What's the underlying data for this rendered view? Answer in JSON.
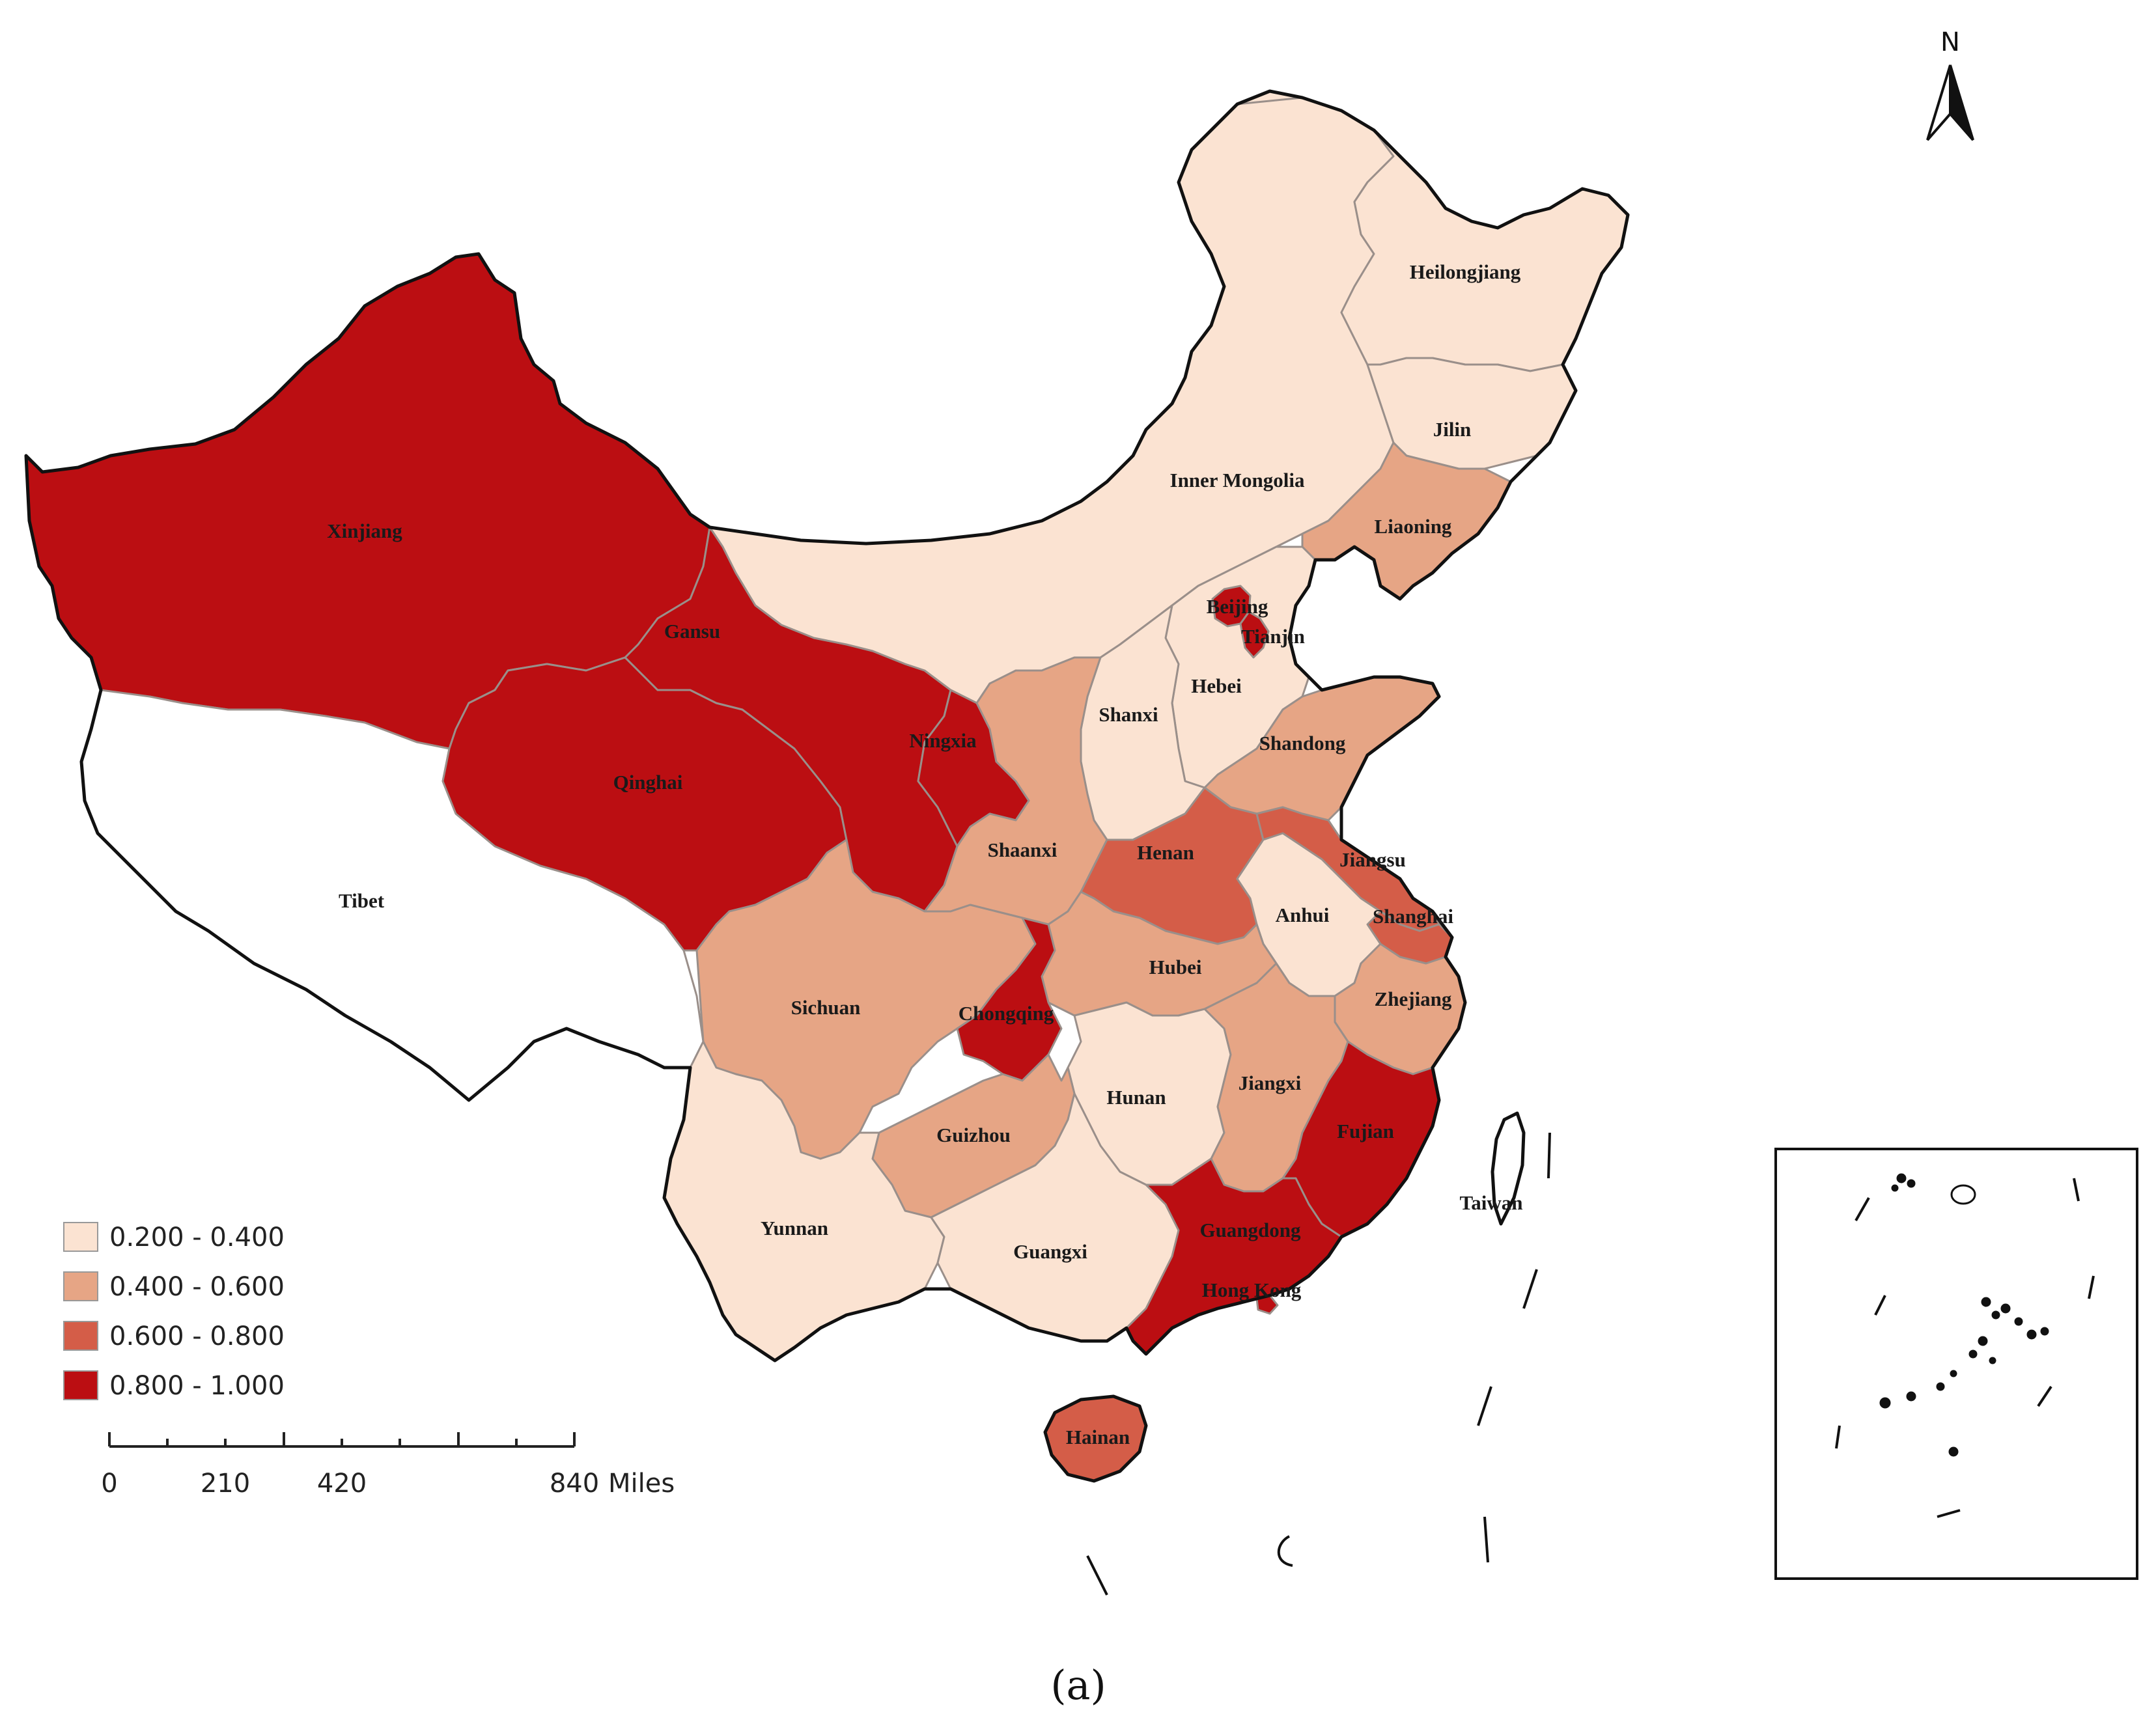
{
  "map": {
    "panel_label": "(a)",
    "north_label": "N",
    "legend": [
      {
        "label": "0.200 - 0.400",
        "color": "#fbe3d2"
      },
      {
        "label": "0.400 - 0.600",
        "color": "#e6a585"
      },
      {
        "label": "0.600 - 0.800",
        "color": "#d45d48"
      },
      {
        "label": "0.800 - 1.000",
        "color": "#bb0e12"
      }
    ],
    "no_data_color": "#ffffff",
    "scale_bar": {
      "ticks": [
        "0",
        "210",
        "420",
        "840"
      ],
      "unit": "Miles"
    },
    "provinces": [
      {
        "name": "Xinjiang",
        "class": 3
      },
      {
        "name": "Tibet",
        "class": null
      },
      {
        "name": "Qinghai",
        "class": 3
      },
      {
        "name": "Gansu",
        "class": 3
      },
      {
        "name": "Inner Mongolia",
        "class": 0
      },
      {
        "name": "Heilongjiang",
        "class": 0
      },
      {
        "name": "Jilin",
        "class": 0
      },
      {
        "name": "Liaoning",
        "class": 1
      },
      {
        "name": "Beijing",
        "class": 3
      },
      {
        "name": "Tianjin",
        "class": 3
      },
      {
        "name": "Hebei",
        "class": 0
      },
      {
        "name": "Shanxi",
        "class": 0
      },
      {
        "name": "Shandong",
        "class": 1
      },
      {
        "name": "Ningxia",
        "class": 3
      },
      {
        "name": "Shaanxi",
        "class": 1
      },
      {
        "name": "Henan",
        "class": 2
      },
      {
        "name": "Jiangsu",
        "class": 2
      },
      {
        "name": "Shanghai",
        "class": 2
      },
      {
        "name": "Anhui",
        "class": 0
      },
      {
        "name": "Hubei",
        "class": 1
      },
      {
        "name": "Sichuan",
        "class": 1
      },
      {
        "name": "Chongqing",
        "class": 3
      },
      {
        "name": "Zhejiang",
        "class": 1
      },
      {
        "name": "Hunan",
        "class": 0
      },
      {
        "name": "Jiangxi",
        "class": 1
      },
      {
        "name": "Fujian",
        "class": 3
      },
      {
        "name": "Guizhou",
        "class": 1
      },
      {
        "name": "Yunnan",
        "class": 0
      },
      {
        "name": "Guangxi",
        "class": 0
      },
      {
        "name": "Guangdong",
        "class": 3
      },
      {
        "name": "Hong Kong",
        "class": 3
      },
      {
        "name": "Hainan",
        "class": 2
      },
      {
        "name": "Taiwan",
        "class": null
      }
    ]
  }
}
